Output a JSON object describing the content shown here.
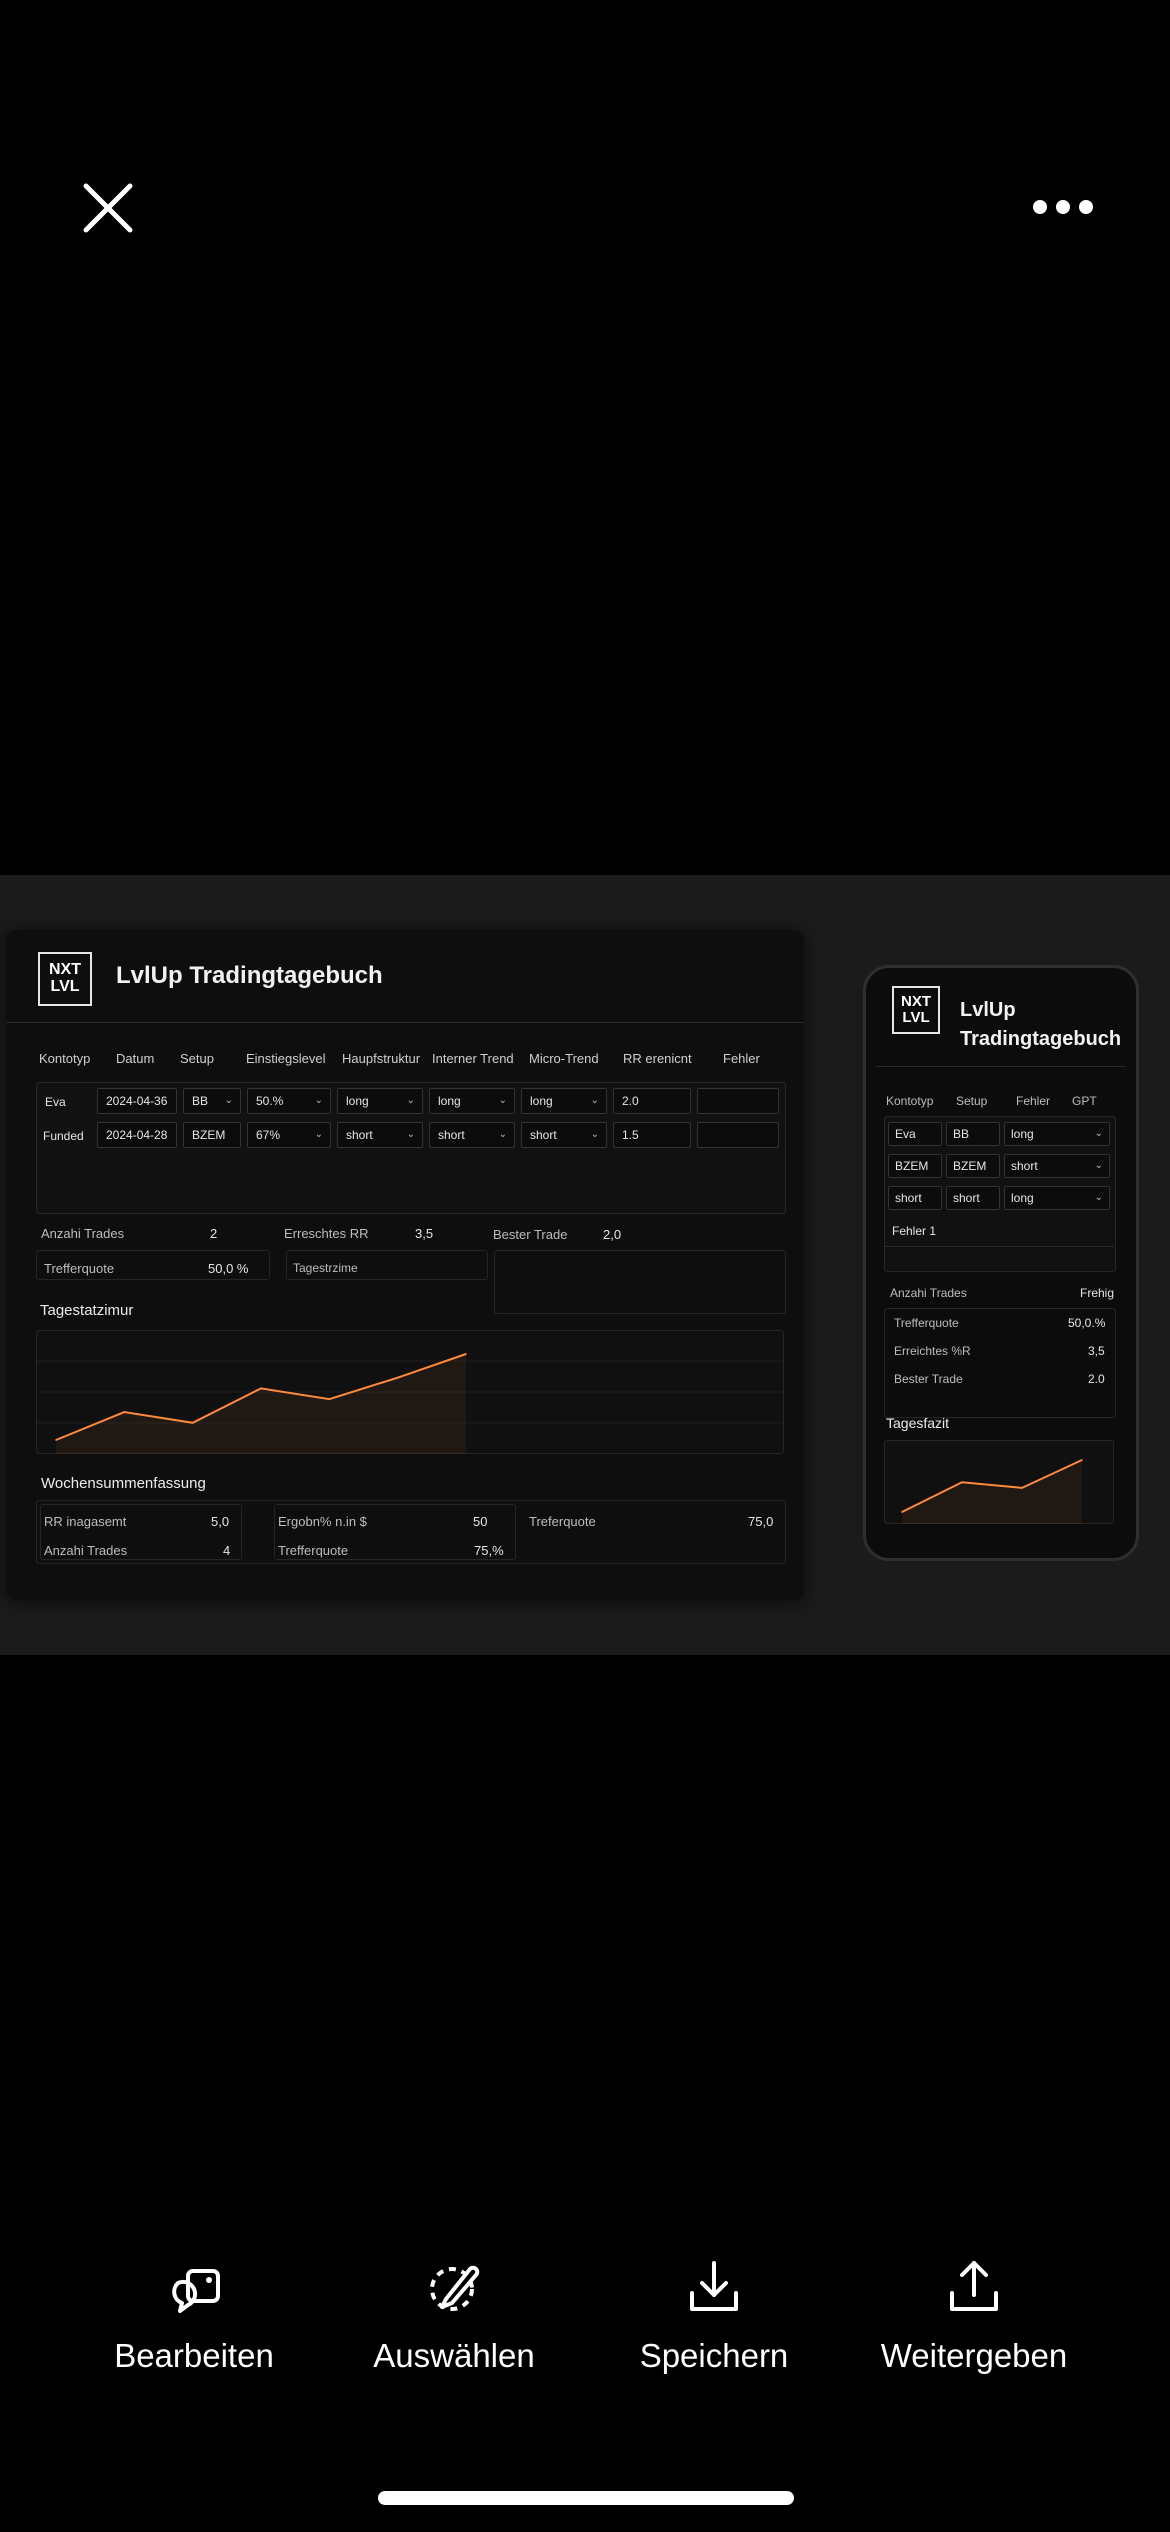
{
  "desktop": {
    "logo_line1": "NXT",
    "logo_line2": "LVL",
    "title": "LvlUp Tradingtagebuch",
    "columns": [
      "Kontotyp",
      "Datum",
      "Setup",
      "Einstiegslevel",
      "Haupfstruktur",
      "Interner Trend",
      "Micro-Trend",
      "RR erenicnt",
      "Fehler"
    ],
    "rows": [
      {
        "kontotyp": "Eva",
        "datum": "2024-04-36",
        "setup": "BB",
        "einstieg": "50.%",
        "haupt": "long",
        "intern": "long",
        "micro": "long",
        "rr": "2.0",
        "fehler": ""
      },
      {
        "kontotyp": "Funded",
        "datum": "2024-04-28",
        "setup": "BZEM",
        "einstieg": "67%",
        "haupt": "short",
        "intern": "short",
        "micro": "short",
        "rr": "1.5",
        "fehler": ""
      }
    ],
    "stats": {
      "anzahl_label": "Anzahi Trades",
      "anzahl_value": "2",
      "rr_label": "Erreschtes RR",
      "rr_value": "3,5",
      "best_label": "Bester Trade",
      "best_value": "2,0",
      "treffer_label": "Trefferquote",
      "treffer_value": "50,0 %",
      "tages_field_label": "Tagestrzime"
    },
    "daily_title": "Tagestatzimur",
    "weekly": {
      "title": "Wochensummenfassung",
      "rr_label": "RR inagasemt",
      "rr_value": "5,0",
      "anzahl_label": "Anzahi Trades",
      "anzahl_value": "4",
      "ergebnis_label": "Ergobn% n.in $",
      "ergebnis_value": "50",
      "treffer2_label": "Trefferquote",
      "treffer2_value": "75,%",
      "treferquote_label": "Treferquote",
      "treferquote_value": "75,0"
    }
  },
  "phone": {
    "logo_line1": "NXT",
    "logo_line2": "LVL",
    "title": "LvlUp Tradingtagebuch",
    "columns": [
      "Kontotyp",
      "Setup",
      "Fehler",
      "GPT"
    ],
    "rows": [
      {
        "a": "Eva",
        "b": "BB",
        "c": "long"
      },
      {
        "a": "BZEM",
        "b": "BZEM",
        "c": "short"
      },
      {
        "a": "short",
        "b": "short",
        "c": "long"
      }
    ],
    "fehler_row": "Fehler 1",
    "stats": {
      "anzahl_label": "Anzahi Trades",
      "anzahl_value": "Frehig",
      "treffer_label": "Trefferquote",
      "treffer_value": "50,0.%",
      "rr_label": "Erreichtes %R",
      "rr_value": "3,5",
      "best_label": "Bester Trade",
      "best_value": "2.0"
    },
    "section_title": "Tagesfazit"
  },
  "actions": [
    {
      "label": "Bearbeiten",
      "icon": "edit-shapes-icon"
    },
    {
      "label": "Auswählen",
      "icon": "select-subject-icon"
    },
    {
      "label": "Speichern",
      "icon": "download-icon"
    },
    {
      "label": "Weitergeben",
      "icon": "share-icon"
    }
  ],
  "colors": {
    "accent": "#ff8a3d",
    "background": "#000000",
    "band": "#1b1b1b"
  },
  "chart_data": [
    {
      "type": "line",
      "x": [
        1,
        2,
        3,
        4,
        5,
        6,
        7
      ],
      "values": [
        1.0,
        2.3,
        1.8,
        3.4,
        2.9,
        3.9,
        5.0
      ],
      "title": "",
      "xlabel": "",
      "ylabel": ""
    },
    {
      "type": "line",
      "x": [
        1,
        2,
        3,
        4
      ],
      "values": [
        1.0,
        2.6,
        2.3,
        3.8
      ],
      "title": "",
      "xlabel": "",
      "ylabel": ""
    }
  ]
}
